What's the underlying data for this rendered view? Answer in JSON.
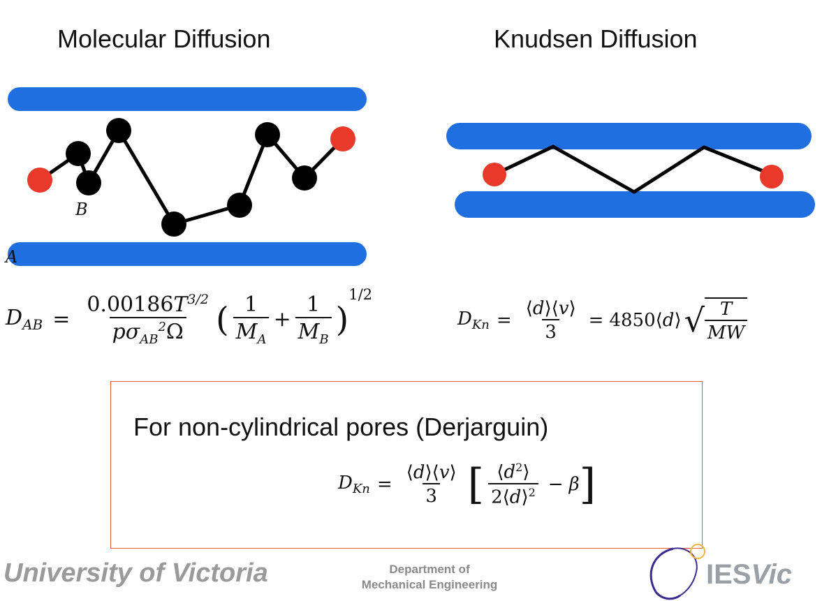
{
  "titles": {
    "molecular": "Molecular Diffusion",
    "knudsen": "Knudsen Diffusion"
  },
  "labels": {
    "b": "B",
    "a": "A"
  },
  "box": {
    "title": "For non-cylindrical pores (Derjarguin)"
  },
  "footer": {
    "university": "University of Victoria",
    "department_line1": "Department of",
    "department_line2": "Mechanical Engineering",
    "logo_text_plain": "IES",
    "logo_text_italic": "Vic"
  },
  "colors": {
    "wall": "#1f6fe0",
    "endpoint": "#e8392a",
    "particle": "#000000",
    "box_border": "#e8583a",
    "footer_gray": "#9a9a9a"
  }
}
